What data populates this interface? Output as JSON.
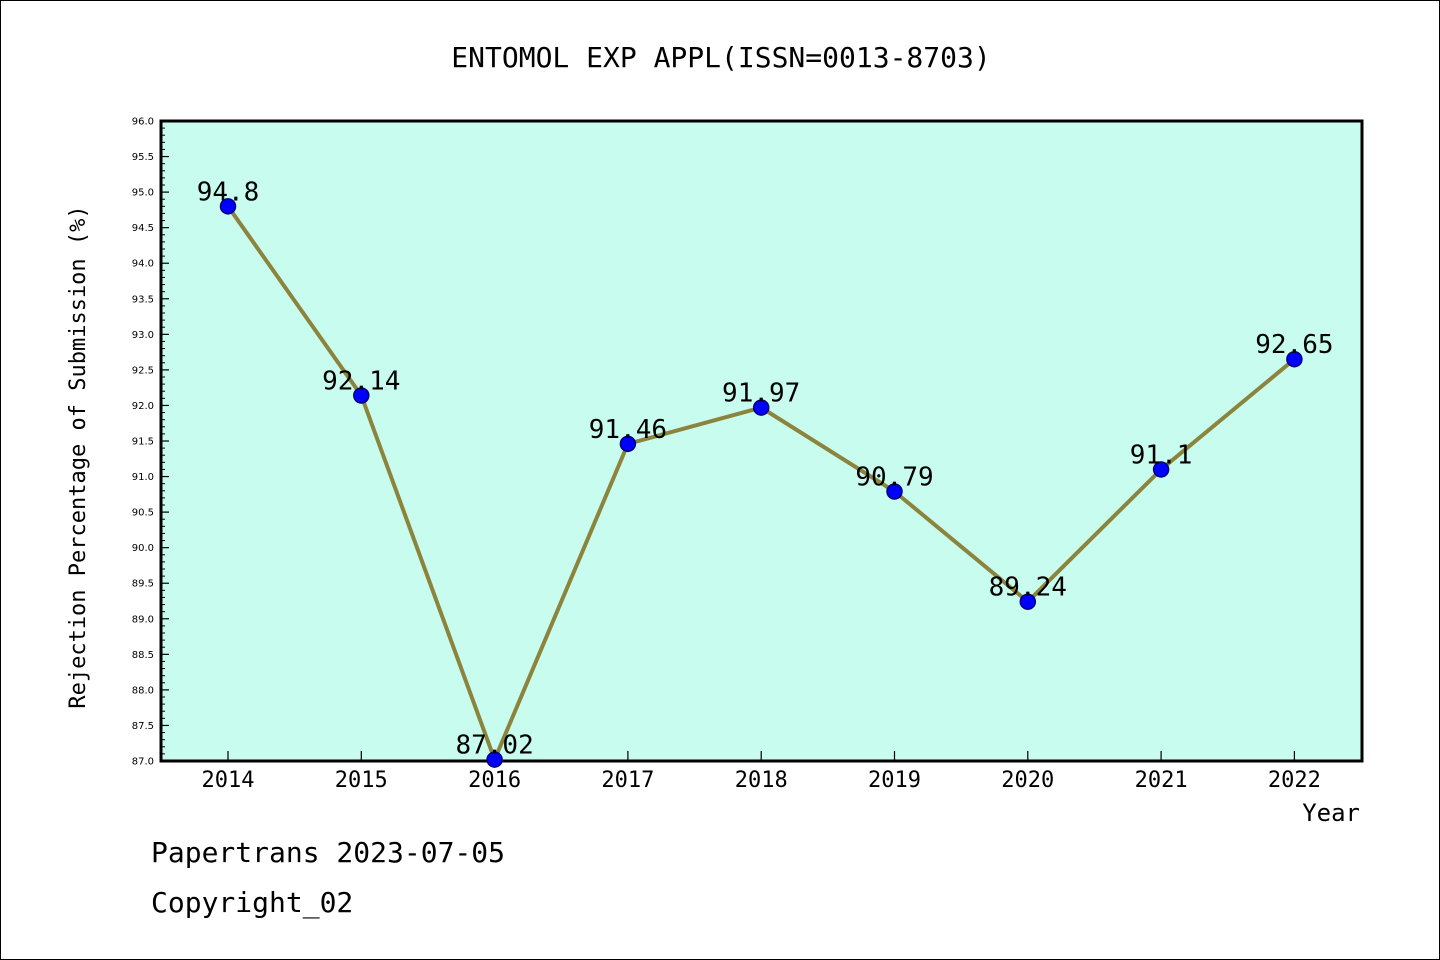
{
  "chart_data": {
    "type": "line",
    "title": "ENTOMOL EXP APPL(ISSN=0013-8703)",
    "xlabel": "Year",
    "ylabel": "Rejection Percentage of Submission (%)",
    "categories": [
      "2014",
      "2015",
      "2016",
      "2017",
      "2018",
      "2019",
      "2020",
      "2021",
      "2022"
    ],
    "values": [
      94.8,
      92.14,
      87.02,
      91.46,
      91.97,
      90.79,
      89.24,
      91.1,
      92.65
    ],
    "data_labels": [
      "94.8",
      "92.14",
      "87.02",
      "91.46",
      "91.97",
      "90.79",
      "89.24",
      "91.1",
      "92.65"
    ],
    "ylim": [
      87.0,
      96.0
    ],
    "yticks": [
      "87.0",
      "87.5",
      "88.0",
      "88.5",
      "89.0",
      "89.5",
      "90.0",
      "90.5",
      "91.0",
      "91.5",
      "92.0",
      "92.5",
      "93.0",
      "93.5",
      "94.0",
      "94.5",
      "95.0",
      "95.5",
      "96.0"
    ],
    "grid": false,
    "legend": "none",
    "colors": {
      "plot_background": "#c8fcee",
      "line": "#8c843c",
      "marker": "#0000ff",
      "marker_edge": "#00007a"
    }
  },
  "footer": {
    "line1": "Papertrans 2023-07-05",
    "line2": "Copyright_02"
  }
}
